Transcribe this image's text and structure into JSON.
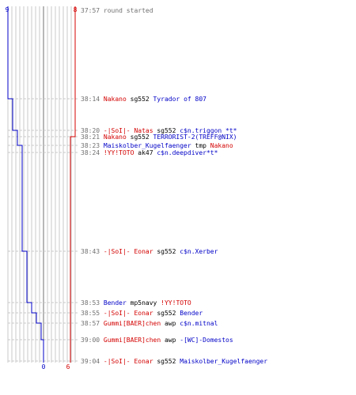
{
  "score": {
    "blue_start": "9",
    "blue_end": "0",
    "red_start": "8",
    "red_end": "6"
  },
  "colors": {
    "blue": "#0000c8",
    "red": "#d40000",
    "black": "#000000",
    "gray": "#707070",
    "grid": "#c8c8c8"
  },
  "events": [
    {
      "time": "37:57",
      "parts": [
        {
          "text": "round started",
          "color": "gray"
        }
      ]
    },
    {
      "time": "38:14",
      "parts": [
        {
          "text": "Nakano",
          "color": "red"
        },
        {
          "text": " sg552 ",
          "color": "black"
        },
        {
          "text": "Tyrador of 807",
          "color": "blue"
        }
      ]
    },
    {
      "time": "38:20",
      "parts": [
        {
          "text": "-|SoI|- Natas",
          "color": "red"
        },
        {
          "text": " sg552 ",
          "color": "black"
        },
        {
          "text": "c$n.triggon *t*",
          "color": "blue"
        }
      ]
    },
    {
      "time": "38:21",
      "parts": [
        {
          "text": "Nakano",
          "color": "red"
        },
        {
          "text": " sg552 ",
          "color": "black"
        },
        {
          "text": "TERRORIST-2(TREFF@NIX)",
          "color": "blue"
        }
      ]
    },
    {
      "time": "38:23",
      "parts": [
        {
          "text": "Maiskolber_Kugelfaenger",
          "color": "blue"
        },
        {
          "text": " tmp ",
          "color": "black"
        },
        {
          "text": "Nakano",
          "color": "red"
        }
      ]
    },
    {
      "time": "38:24",
      "parts": [
        {
          "text": "!YY!TOTO",
          "color": "red"
        },
        {
          "text": " ak47 ",
          "color": "black"
        },
        {
          "text": "c$n.deepdiver*t*",
          "color": "blue"
        }
      ]
    },
    {
      "time": "38:43",
      "parts": [
        {
          "text": "-|SoI|- Eonar",
          "color": "red"
        },
        {
          "text": " sg552 ",
          "color": "black"
        },
        {
          "text": "c$n.Xerber",
          "color": "blue"
        }
      ]
    },
    {
      "time": "38:53",
      "parts": [
        {
          "text": "Bender",
          "color": "blue"
        },
        {
          "text": " mp5navy ",
          "color": "black"
        },
        {
          "text": "!YY!TOTO",
          "color": "red"
        }
      ]
    },
    {
      "time": "38:55",
      "parts": [
        {
          "text": "-|SoI|- Eonar",
          "color": "red"
        },
        {
          "text": " sg552 ",
          "color": "black"
        },
        {
          "text": "Bender",
          "color": "blue"
        }
      ]
    },
    {
      "time": "38:57",
      "parts": [
        {
          "text": "Gummi[BAER]chen",
          "color": "red"
        },
        {
          "text": " awp ",
          "color": "black"
        },
        {
          "text": "c$n.mitnal",
          "color": "blue"
        }
      ]
    },
    {
      "time": "39:00",
      "parts": [
        {
          "text": "Gummi[BAER]chen",
          "color": "red"
        },
        {
          "text": " awp ",
          "color": "black"
        },
        {
          "text": "-[WC]-Domestos",
          "color": "blue"
        }
      ]
    },
    {
      "time": "39:04",
      "parts": [
        {
          "text": "-|SoI|- Eonar",
          "color": "red"
        },
        {
          "text": " sg552 ",
          "color": "black"
        },
        {
          "text": "Maiskolber_Kugelfaenger",
          "color": "blue"
        }
      ]
    }
  ]
}
